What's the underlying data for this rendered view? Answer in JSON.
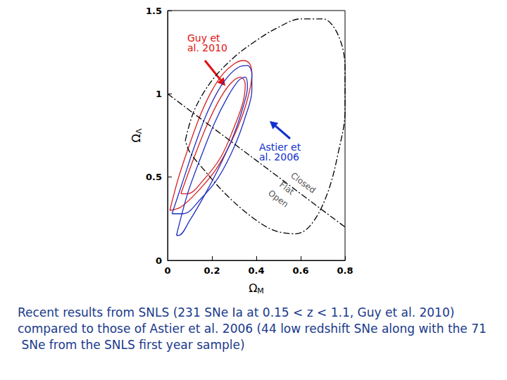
{
  "chart_data": {
    "type": "line",
    "x_label": "ΩM",
    "y_label": "ΩΛ",
    "xlim": [
      0,
      0.8
    ],
    "xticks": [
      0,
      0.2,
      0.4,
      0.6,
      0.8
    ],
    "ylim": [
      0,
      1.5
    ],
    "yticks": [
      0,
      0.5,
      1,
      1.5
    ],
    "grid": false,
    "series": [
      {
        "color": "#d62020",
        "line_style": "solid",
        "x": [
          0.01,
          0.05,
          0.1,
          0.15,
          0.2,
          0.25,
          0.3,
          0.34,
          0.37,
          0.38,
          0.37,
          0.34,
          0.29,
          0.22,
          0.14,
          0.06,
          0.01
        ],
        "values": [
          0.3,
          0.5,
          0.7,
          0.88,
          1.02,
          1.12,
          1.18,
          1.2,
          1.18,
          1.12,
          1.02,
          0.88,
          0.72,
          0.55,
          0.42,
          0.32,
          0.3
        ]
      },
      {
        "color": "#2030c0",
        "line_style": "solid",
        "x": [
          0.02,
          0.07,
          0.12,
          0.17,
          0.22,
          0.27,
          0.32,
          0.36,
          0.38,
          0.38,
          0.35,
          0.3,
          0.23,
          0.15,
          0.07,
          0.02
        ],
        "values": [
          0.28,
          0.48,
          0.68,
          0.86,
          1.0,
          1.1,
          1.16,
          1.17,
          1.12,
          1.02,
          0.86,
          0.68,
          0.5,
          0.37,
          0.28,
          0.28
        ]
      },
      {
        "color": "#d62020",
        "line_style": "solid",
        "x": [
          0.06,
          0.12,
          0.18,
          0.24,
          0.29,
          0.33,
          0.35,
          0.34,
          0.3,
          0.24,
          0.16,
          0.09,
          0.06
        ],
        "values": [
          0.4,
          0.62,
          0.82,
          0.98,
          1.07,
          1.1,
          1.06,
          0.95,
          0.8,
          0.62,
          0.48,
          0.4,
          0.4
        ]
      },
      {
        "color": "#2030c0",
        "line_style": "solid",
        "x": [
          0.04,
          0.09,
          0.15,
          0.21,
          0.27,
          0.32,
          0.35,
          0.36,
          0.34,
          0.3,
          0.24,
          0.17,
          0.1,
          0.05,
          0.04
        ],
        "values": [
          0.15,
          0.4,
          0.62,
          0.82,
          0.98,
          1.08,
          1.1,
          1.04,
          0.92,
          0.76,
          0.58,
          0.4,
          0.24,
          0.15,
          0.15
        ]
      },
      {
        "color": "#000000",
        "line_style": "dashdot",
        "x": [
          0.08,
          0.12,
          0.2,
          0.3,
          0.4,
          0.5,
          0.6,
          0.7,
          0.77,
          0.8,
          0.8,
          0.77,
          0.72,
          0.65,
          0.58,
          0.48,
          0.38,
          0.26,
          0.16,
          0.1,
          0.08
        ],
        "values": [
          0.72,
          0.9,
          1.08,
          1.22,
          1.32,
          1.4,
          1.45,
          1.45,
          1.35,
          1.15,
          0.9,
          0.65,
          0.4,
          0.22,
          0.16,
          0.18,
          0.26,
          0.4,
          0.55,
          0.65,
          0.72
        ]
      },
      {
        "color": "#000000",
        "line_style": "dashdot",
        "x": [
          0,
          0.8
        ],
        "values": [
          1,
          0.2
        ]
      }
    ],
    "annotations": [
      {
        "text": "Guy et al. 2010",
        "color": "#e01010"
      },
      {
        "text": "Astier et al. 2006",
        "color": "#1030d0"
      },
      {
        "text": "Closed",
        "color": "#555555"
      },
      {
        "text": "Flat",
        "color": "#555555"
      },
      {
        "text": "Open",
        "color": "#555555"
      }
    ],
    "caption": "Recent results from SNLS (231 SNe Ia at 0.15 < z < 1.1, Guy et al. 2010) compared to those of Astier et al. 2006 (44 low redshift SNe along with the 71 SNe from the SNLS first year sample)"
  }
}
